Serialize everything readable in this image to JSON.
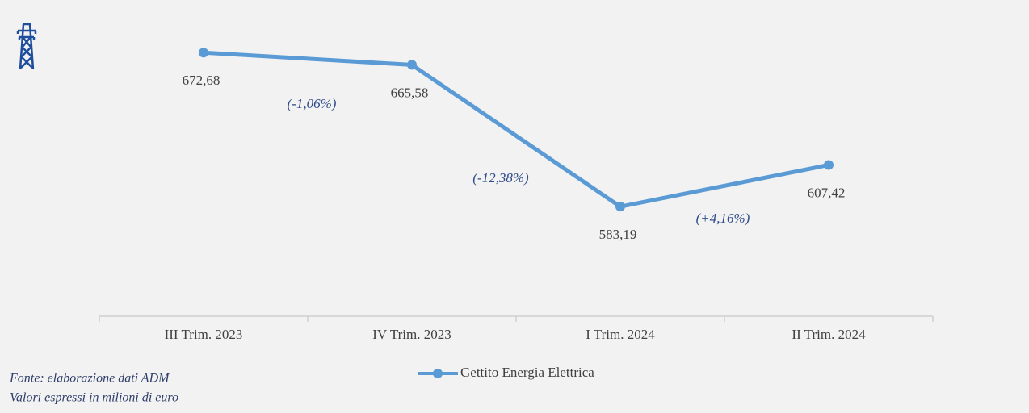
{
  "chart_data": {
    "type": "line",
    "categories": [
      "III Trim. 2023",
      "IV Trim. 2023",
      "I Trim. 2024",
      "II Trim. 2024"
    ],
    "series": [
      {
        "name": "Gettito Energia Elettrica",
        "color": "#5b9bd5",
        "values": [
          672.68,
          665.58,
          583.19,
          607.42
        ],
        "value_labels": [
          "672,68",
          "665,58",
          "583,19",
          "607,42"
        ]
      }
    ],
    "annotations": [
      "(-1,06%)",
      "(-12,38%)",
      "(+4,16%)"
    ],
    "ylim": [
      519.5,
      700
    ],
    "notes": [
      "Fonte: elaborazione dati ADM",
      "Valori espressi in milioni di euro"
    ]
  }
}
